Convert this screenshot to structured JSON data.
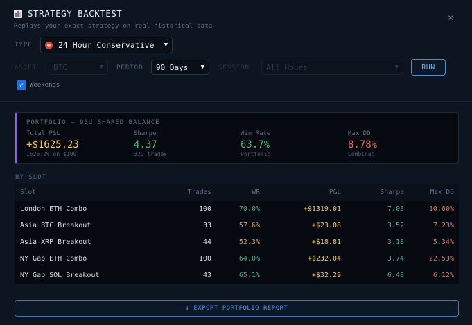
{
  "header": {
    "title": "STRATEGY BACKTEST",
    "subtitle": "Replays your exact strategy on real historical data",
    "close": "×"
  },
  "controls": {
    "type_label": "TYPE",
    "type_value": "24 Hour Conservative",
    "asset_label": "ASSET",
    "asset_value": "BTC",
    "period_label": "PERIOD",
    "period_value": "90 Days",
    "session_label": "SESSION",
    "session_value": "All Hours",
    "run_label": "RUN",
    "weekends_label": "Weekends",
    "weekends_checked": true
  },
  "portfolio": {
    "title": "PORTFOLIO — 90d SHARED BALANCE",
    "accent_color": "#8b5cf6",
    "stats": [
      {
        "key": "Total P&L",
        "value": "+$1625.23",
        "sub": "1625.2% on $100",
        "color": "#f5c451"
      },
      {
        "key": "Sharpe",
        "value": "4.37",
        "sub": "320 trades",
        "color": "#3fb37f"
      },
      {
        "key": "Win Rate",
        "value": "63.7%",
        "sub": "Portfolio",
        "color": "#3fb37f"
      },
      {
        "key": "Max DD",
        "value": "8.78%",
        "sub": "Combined",
        "color": "#f06a55"
      }
    ]
  },
  "slots": {
    "heading": "BY SLOT",
    "columns": {
      "slot": "Slot",
      "trades": "Trades",
      "wr": "WR",
      "pnl": "P&L",
      "sharpe": "Sharpe",
      "dd": "Max DD"
    },
    "rows": [
      {
        "slot": "London ETH Combo",
        "trades": "100",
        "wr": "70.0%",
        "wr_color": "#3fb37f",
        "pnl": "+$1319.01",
        "sharpe": "7.03",
        "dd": "10.60%"
      },
      {
        "slot": "Asia BTC Breakout",
        "trades": "33",
        "wr": "57.6%",
        "wr_color": "#e39b3c",
        "pnl": "+$23.08",
        "sharpe": "3.52",
        "dd": "7.23%"
      },
      {
        "slot": "Asia XRP Breakout",
        "trades": "44",
        "wr": "52.3%",
        "wr_color": "#e39b3c",
        "pnl": "+$18.81",
        "sharpe": "3.18",
        "dd": "5.34%"
      },
      {
        "slot": "NY Gap ETH Combo",
        "trades": "100",
        "wr": "64.0%",
        "wr_color": "#3fb37f",
        "pnl": "+$232.04",
        "sharpe": "3.74",
        "dd": "22.53%"
      },
      {
        "slot": "NY Gap SOL Breakout",
        "trades": "43",
        "wr": "65.1%",
        "wr_color": "#3fb37f",
        "pnl": "+$32.29",
        "sharpe": "6.48",
        "dd": "6.12%"
      }
    ]
  },
  "export_label": "↓ EXPORT PORTFOLIO REPORT",
  "colors": {
    "pnl": "#f5c451",
    "sharpe": "#3fb37f",
    "dd": "#f06a55",
    "trades": "#d7dde4"
  }
}
